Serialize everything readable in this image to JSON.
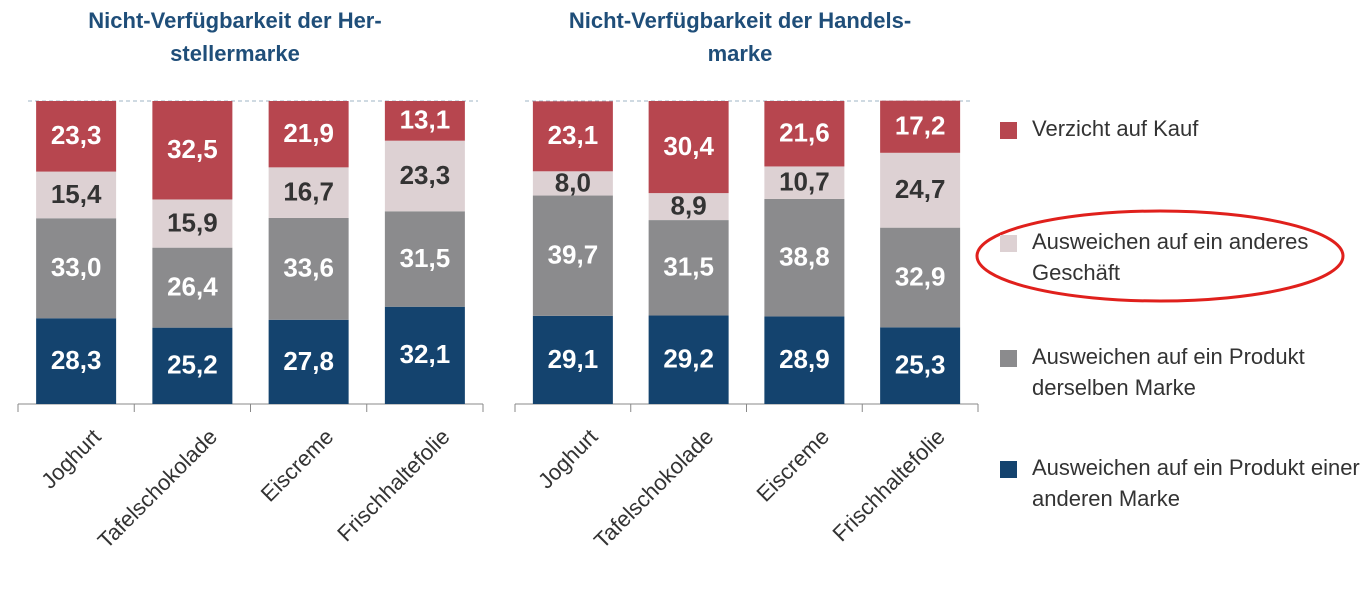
{
  "chart_data": [
    {
      "type": "stacked_bar",
      "title": [
        "Nicht-Verfügbarkeit der Her-",
        "stellermarke"
      ],
      "categories": [
        "Joghurt",
        "Tafelschokolade",
        "Eiscreme",
        "Frischhaltefolie"
      ],
      "ylim": [
        0,
        100
      ],
      "series": [
        {
          "color": "#14436e",
          "label_color": "#ffffff",
          "values": [
            28.3,
            25.2,
            27.8,
            32.1
          ],
          "value_labels": [
            "28,3",
            "25,2",
            "27,8",
            "32,1"
          ]
        },
        {
          "color": "#8b8b8d",
          "label_color": "#ffffff",
          "values": [
            33.0,
            26.4,
            33.6,
            31.5
          ],
          "value_labels": [
            "33,0",
            "26,4",
            "33,6",
            "31,5"
          ]
        },
        {
          "color": "#ddd1d3",
          "label_color": "#333333",
          "values": [
            15.4,
            15.9,
            16.7,
            23.3
          ],
          "value_labels": [
            "15,4",
            "15,9",
            "16,7",
            "23,3"
          ]
        },
        {
          "color": "#b7464f",
          "label_color": "#ffffff",
          "values": [
            23.3,
            32.5,
            21.9,
            13.1
          ],
          "value_labels": [
            "23,3",
            "32,5",
            "21,9",
            "13,1"
          ]
        }
      ]
    },
    {
      "type": "stacked_bar",
      "title": [
        "Nicht-Verfügbarkeit der Handels-",
        "marke"
      ],
      "categories": [
        "Joghurt",
        "Tafelschokolade",
        "Eiscreme",
        "Frischhaltefolie"
      ],
      "ylim": [
        0,
        100
      ],
      "series": [
        {
          "name": "Ausweichen auf ein Produkt einer anderen Marke",
          "color": "#14436e",
          "label_color": "#ffffff",
          "values": [
            29.1,
            29.2,
            28.9,
            25.3
          ],
          "value_labels": [
            "29,1",
            "29,2",
            "28,9",
            "25,3"
          ]
        },
        {
          "name": "Ausweichen auf ein Produkt derselben Marke",
          "color": "#8b8b8d",
          "label_color": "#ffffff",
          "values": [
            39.7,
            31.5,
            38.8,
            32.9
          ],
          "value_labels": [
            "39,7",
            "31,5",
            "38,8",
            "32,9"
          ]
        },
        {
          "name": "Ausweichen auf ein anderes Geschäft",
          "color": "#ddd1d3",
          "label_color": "#333333",
          "values": [
            8.0,
            8.9,
            10.7,
            24.7
          ],
          "value_labels": [
            "8,0",
            "8,9",
            "10,7",
            "24,7"
          ]
        },
        {
          "name": "Verzicht auf Kauf",
          "color": "#b7464f",
          "label_color": "#ffffff",
          "values": [
            23.1,
            30.4,
            21.6,
            17.2
          ],
          "value_labels": [
            "23,1",
            "30,4",
            "21,6",
            "17,2"
          ]
        }
      ]
    }
  ]
}
